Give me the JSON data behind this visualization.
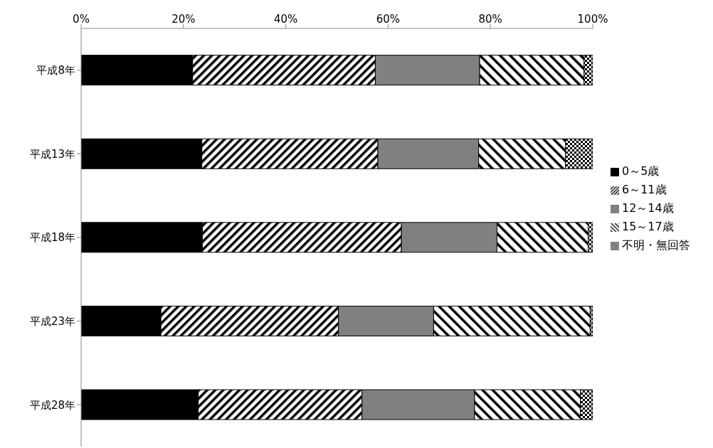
{
  "chart_data": {
    "type": "bar",
    "orientation": "horizontal",
    "stacked": true,
    "categories": [
      "平成8年",
      "平成13年",
      "平成18年",
      "平成23年",
      "平成28年"
    ],
    "series": [
      {
        "name": "0～5歳",
        "color": "#000000",
        "values": [
          21.8,
          23.6,
          23.7,
          15.6,
          22.9
        ]
      },
      {
        "name": "6～11歳",
        "color": "#000000",
        "values": [
          35.7,
          34.4,
          38.9,
          34.7,
          32.0
        ]
      },
      {
        "name": "12～14歳",
        "color": "#808080",
        "values": [
          20.4,
          19.7,
          18.7,
          18.6,
          22.0
        ]
      },
      {
        "name": "15～17歳",
        "color": "#000000",
        "values": [
          20.4,
          17.0,
          17.8,
          30.6,
          20.7
        ]
      },
      {
        "name": "不明・無回答",
        "color": "#000000",
        "values": [
          1.7,
          5.3,
          0.9,
          0.5,
          2.4
        ]
      }
    ],
    "xlim": [
      0,
      100
    ],
    "xticks": [
      {
        "value": 0,
        "label": "0%"
      },
      {
        "value": 20,
        "label": "20%"
      },
      {
        "value": 40,
        "label": "40%"
      },
      {
        "value": 60,
        "label": "60%"
      },
      {
        "value": 80,
        "label": "80%"
      },
      {
        "value": 100,
        "label": "100%"
      }
    ],
    "grid": false,
    "legend": "right"
  }
}
